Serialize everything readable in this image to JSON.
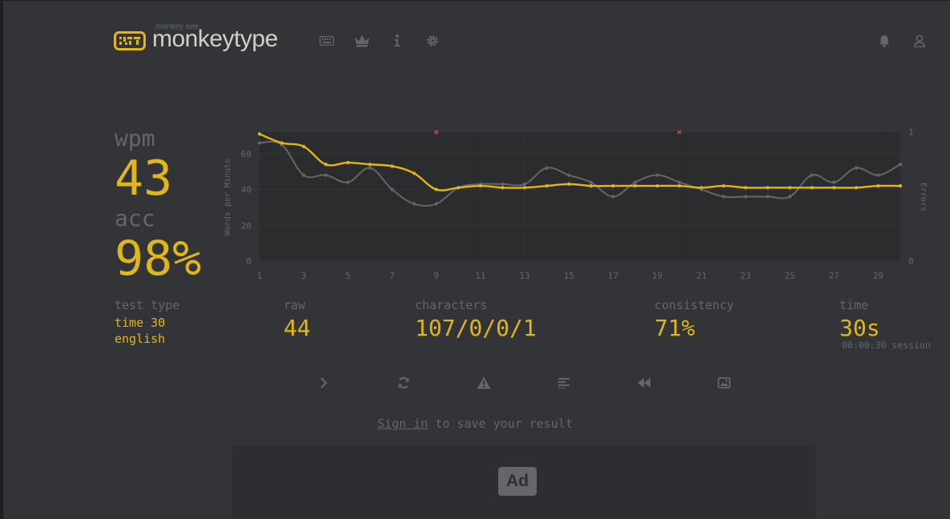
{
  "header": {
    "logo_small": "monkey see",
    "logo_text": "monkeytype",
    "nav": [
      "keyboard-icon",
      "crown-icon",
      "info-icon",
      "gear-icon"
    ],
    "right": [
      "bell-icon",
      "user-icon"
    ]
  },
  "stats": {
    "wpm_label": "wpm",
    "wpm": "43",
    "acc_label": "acc",
    "acc": "98%",
    "test_type_label": "test type",
    "test_type_mode": "time 30",
    "test_type_language": "english",
    "raw_label": "raw",
    "raw": "44",
    "characters_label": "characters",
    "characters": "107/0/0/1",
    "consistency_label": "consistency",
    "consistency": "71%",
    "time_label": "time",
    "time": "30s",
    "session": "00:00:30 session"
  },
  "chart_data": {
    "type": "line",
    "x": [
      1,
      2,
      3,
      4,
      5,
      6,
      7,
      8,
      9,
      10,
      11,
      12,
      13,
      14,
      15,
      16,
      17,
      18,
      19,
      20,
      21,
      22,
      23,
      24,
      25,
      26,
      27,
      28,
      29,
      30
    ],
    "x_ticks": [
      "1",
      "3",
      "5",
      "7",
      "9",
      "11",
      "13",
      "15",
      "17",
      "19",
      "21",
      "23",
      "25",
      "27",
      "29"
    ],
    "ylabel": "Words per Minute",
    "y2label": "Errors",
    "ylim": [
      0,
      72
    ],
    "y_ticks": [
      "0",
      "20",
      "40",
      "60"
    ],
    "y2_ticks": [
      "0",
      "1"
    ],
    "y2lim": [
      0,
      1
    ],
    "grid": true,
    "colors": {
      "wpm": "#e2b714",
      "raw": "#646669",
      "error": "#ca4754"
    },
    "series": [
      {
        "key": "wpm",
        "values": [
          71,
          66,
          64,
          54,
          55,
          54,
          53,
          49,
          40,
          41,
          42,
          41,
          41,
          42,
          43,
          42,
          42,
          42,
          42,
          42,
          41,
          42,
          41,
          41,
          41,
          41,
          41,
          41,
          42,
          42
        ]
      },
      {
        "key": "raw",
        "values": [
          66,
          65,
          48,
          48,
          44,
          52,
          40,
          32,
          32,
          41,
          43,
          43,
          43,
          52,
          48,
          44,
          36,
          44,
          48,
          44,
          40,
          36,
          36,
          36,
          36,
          48,
          44,
          52,
          48,
          54
        ]
      },
      {
        "key": "errors",
        "x": [
          9,
          20
        ],
        "values": [
          1,
          1
        ]
      }
    ]
  },
  "actions": [
    "next-test-icon",
    "restart-icon",
    "warning-icon",
    "words-history-icon",
    "replay-icon",
    "screenshot-icon"
  ],
  "signin": {
    "link": "Sign in",
    "rest": " to save your result"
  },
  "ad": {
    "label": "Ad"
  }
}
